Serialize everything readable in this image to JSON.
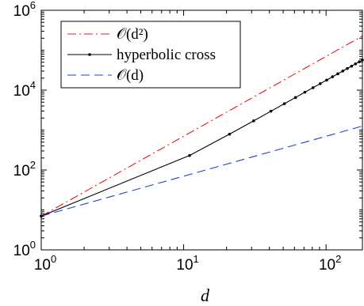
{
  "chart_data": {
    "type": "line",
    "title": "",
    "xlabel": "d",
    "ylabel": "",
    "xscale": "log",
    "yscale": "log",
    "xlim": [
      1,
      180
    ],
    "ylim": [
      1,
      1000000
    ],
    "grid": false,
    "legend_position": "top-left",
    "x_ticks": [
      {
        "value": 1,
        "base": "10",
        "exp": "0"
      },
      {
        "value": 10,
        "base": "10",
        "exp": "1"
      },
      {
        "value": 100,
        "base": "10",
        "exp": "2"
      }
    ],
    "y_ticks": [
      {
        "value": 1,
        "base": "10",
        "exp": "0"
      },
      {
        "value": 100,
        "base": "10",
        "exp": "2"
      },
      {
        "value": 10000,
        "base": "10",
        "exp": "4"
      },
      {
        "value": 1000000,
        "base": "10",
        "exp": "6"
      }
    ],
    "series": [
      {
        "name": "O(d²)",
        "legend_text": "𝒪(d²)",
        "color": "#e41a1c",
        "dash": "dashdot",
        "markers": false,
        "x": [
          1,
          180
        ],
        "y": [
          7,
          226800
        ]
      },
      {
        "name": "hyperbolic cross",
        "legend_text": "hyperbolic cross",
        "color": "#000000",
        "dash": "solid",
        "markers": true,
        "x": [
          1,
          11,
          21,
          31,
          41,
          51,
          61,
          71,
          81,
          91,
          101,
          111,
          121,
          131,
          141,
          151,
          161,
          171,
          180
        ],
        "y": [
          7,
          231,
          791,
          1702,
          2964,
          4575,
          6538,
          8850,
          11513,
          14527,
          17890,
          21604,
          25669,
          30083,
          34848,
          39964,
          45429,
          51245,
          56800
        ]
      },
      {
        "name": "O(d)",
        "legend_text": "𝒪(d)",
        "color": "#1f3fd8",
        "dash": "dashed",
        "markers": false,
        "x": [
          1,
          180
        ],
        "y": [
          7,
          1260
        ]
      }
    ]
  }
}
